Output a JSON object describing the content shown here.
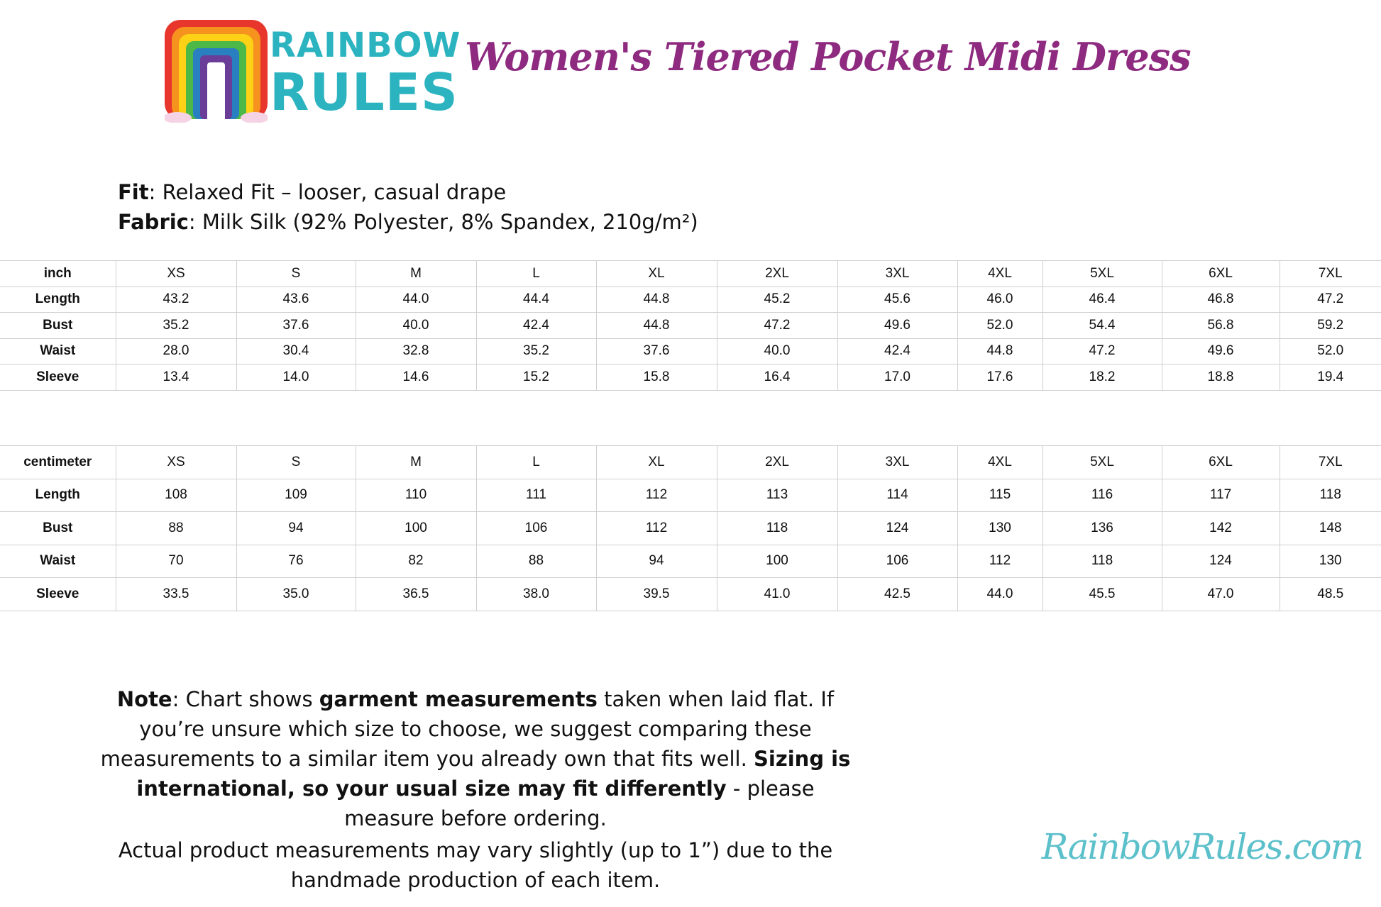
{
  "brand": {
    "logo_text_line1": "RAINBOW",
    "logo_text_line2": "RULES",
    "website": "RainbowRules.com",
    "accent_color": "#8e2a7f",
    "brand_teal": "#2bb3c0"
  },
  "title": "Women's Tiered Pocket Midi Dress",
  "info": {
    "fit_label": "Fit",
    "fit_value": ": Relaxed Fit – looser, casual drape",
    "fabric_label": "Fabric",
    "fabric_value": ": Milk Silk (92% Polyester, 8% Spandex, 210g/m²)"
  },
  "tables": [
    {
      "unit": "inch",
      "sizes": [
        "XS",
        "S",
        "M",
        "L",
        "XL",
        "2XL",
        "3XL",
        "4XL",
        "5XL",
        "6XL",
        "7XL"
      ],
      "rows": [
        {
          "label": "Length",
          "values": [
            "43.2",
            "43.6",
            "44.0",
            "44.4",
            "44.8",
            "45.2",
            "45.6",
            "46.0",
            "46.4",
            "46.8",
            "47.2"
          ]
        },
        {
          "label": "Bust",
          "values": [
            "35.2",
            "37.6",
            "40.0",
            "42.4",
            "44.8",
            "47.2",
            "49.6",
            "52.0",
            "54.4",
            "56.8",
            "59.2"
          ]
        },
        {
          "label": "Waist",
          "values": [
            "28.0",
            "30.4",
            "32.8",
            "35.2",
            "37.6",
            "40.0",
            "42.4",
            "44.8",
            "47.2",
            "49.6",
            "52.0"
          ]
        },
        {
          "label": "Sleeve",
          "values": [
            "13.4",
            "14.0",
            "14.6",
            "15.2",
            "15.8",
            "16.4",
            "17.0",
            "17.6",
            "18.2",
            "18.8",
            "19.4"
          ]
        }
      ]
    },
    {
      "unit": "centimeter",
      "sizes": [
        "XS",
        "S",
        "M",
        "L",
        "XL",
        "2XL",
        "3XL",
        "4XL",
        "5XL",
        "6XL",
        "7XL"
      ],
      "rows": [
        {
          "label": "Length",
          "values": [
            "108",
            "109",
            "110",
            "111",
            "112",
            "113",
            "114",
            "115",
            "116",
            "117",
            "118"
          ]
        },
        {
          "label": "Bust",
          "values": [
            "88",
            "94",
            "100",
            "106",
            "112",
            "118",
            "124",
            "130",
            "136",
            "142",
            "148"
          ]
        },
        {
          "label": "Waist",
          "values": [
            "70",
            "76",
            "82",
            "88",
            "94",
            "100",
            "106",
            "112",
            "118",
            "124",
            "130"
          ]
        },
        {
          "label": "Sleeve",
          "values": [
            "33.5",
            "35.0",
            "36.5",
            "38.0",
            "39.5",
            "41.0",
            "42.5",
            "44.0",
            "45.5",
            "47.0",
            "48.5"
          ]
        }
      ]
    }
  ],
  "note": {
    "label": "Note",
    "p1": ": Chart shows ",
    "b1": "garment measurements",
    "p2": " taken when laid flat. If you’re unsure which size to choose, we suggest comparing these measurements to a similar item you already own that fits well. ",
    "b2": "Sizing is international, so your usual size may fit differently",
    "p3": " - please measure before ordering.",
    "disclaimer": "Actual product measurements may vary slightly (up to 1”) due to the handmade production of each item."
  }
}
